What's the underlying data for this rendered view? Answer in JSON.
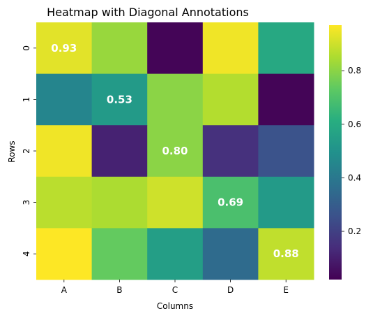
{
  "chart_data": {
    "type": "heatmap",
    "title": "Heatmap with Diagonal Annotations",
    "xlabel": "Columns",
    "ylabel": "Rows",
    "x_categories": [
      "A",
      "B",
      "C",
      "D",
      "E"
    ],
    "y_categories": [
      "0",
      "1",
      "2",
      "3",
      "4"
    ],
    "values": [
      [
        0.93,
        0.82,
        0.03,
        0.95,
        0.59
      ],
      [
        0.45,
        0.53,
        0.8,
        0.86,
        0.03
      ],
      [
        0.95,
        0.11,
        0.8,
        0.15,
        0.26
      ],
      [
        0.87,
        0.85,
        0.9,
        0.69,
        0.53
      ],
      [
        0.97,
        0.74,
        0.55,
        0.35,
        0.88
      ]
    ],
    "annotations": [
      {
        "row": 0,
        "col": 0,
        "text": "0.93"
      },
      {
        "row": 1,
        "col": 1,
        "text": "0.53"
      },
      {
        "row": 2,
        "col": 2,
        "text": "0.80"
      },
      {
        "row": 3,
        "col": 3,
        "text": "0.69"
      },
      {
        "row": 4,
        "col": 4,
        "text": "0.88"
      }
    ],
    "colormap": "viridis",
    "colorbar": {
      "range": [
        0.02,
        0.97
      ],
      "ticks": [
        0.2,
        0.4,
        0.6,
        0.8
      ],
      "tick_labels": [
        "0.2",
        "0.4",
        "0.6",
        "0.8"
      ]
    },
    "grid": false,
    "legend": "colorbar-right"
  }
}
